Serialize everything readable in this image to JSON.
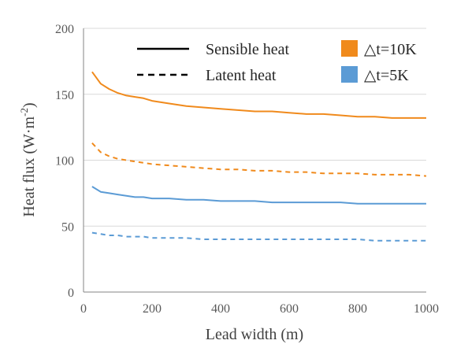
{
  "chart_data": {
    "type": "line",
    "xlabel": "Lead width (m)",
    "ylabel": "Heat flux (W·m",
    "ylabel_sup": "-2",
    "ylabel_close": ")",
    "xlim": [
      0,
      1000
    ],
    "ylim": [
      0,
      200
    ],
    "xticks": [
      0,
      200,
      400,
      600,
      800,
      1000
    ],
    "yticks": [
      0,
      50,
      100,
      150,
      200
    ],
    "grid": {
      "horizontal": true,
      "vertical": false
    },
    "legend": {
      "placement": "top-right",
      "styles": [
        {
          "label": "Sensible heat",
          "dash": "solid"
        },
        {
          "label": "Latent heat",
          "dash": "dashed"
        }
      ],
      "colors": [
        {
          "label": "△t=10K",
          "color": "#f08a1c"
        },
        {
          "label": "△t=5K",
          "color": "#5b9bd5"
        }
      ]
    },
    "series": [
      {
        "delta_t": "△t=10K",
        "heat": "Sensible heat",
        "color": "#f08a1c",
        "dash": "solid",
        "x": [
          25,
          50,
          75,
          100,
          125,
          150,
          175,
          200,
          250,
          300,
          350,
          400,
          450,
          500,
          550,
          600,
          650,
          700,
          750,
          800,
          850,
          900,
          950,
          1000
        ],
        "y": [
          167,
          158,
          154,
          151,
          149,
          148,
          147,
          145,
          143,
          141,
          140,
          139,
          138,
          137,
          137,
          136,
          135,
          135,
          134,
          133,
          133,
          132,
          132,
          132
        ]
      },
      {
        "delta_t": "△t=10K",
        "heat": "Latent heat",
        "color": "#f08a1c",
        "dash": "dashed",
        "x": [
          25,
          50,
          75,
          100,
          125,
          150,
          175,
          200,
          250,
          300,
          350,
          400,
          450,
          500,
          550,
          600,
          650,
          700,
          750,
          800,
          850,
          900,
          950,
          1000
        ],
        "y": [
          113,
          106,
          103,
          101,
          100,
          99,
          98,
          97,
          96,
          95,
          94,
          93,
          93,
          92,
          92,
          91,
          91,
          90,
          90,
          90,
          89,
          89,
          89,
          88
        ]
      },
      {
        "delta_t": "△t=5K",
        "heat": "Sensible heat",
        "color": "#5b9bd5",
        "dash": "solid",
        "x": [
          25,
          50,
          75,
          100,
          125,
          150,
          175,
          200,
          250,
          300,
          350,
          400,
          450,
          500,
          550,
          600,
          650,
          700,
          750,
          800,
          850,
          900,
          950,
          1000
        ],
        "y": [
          80,
          76,
          75,
          74,
          73,
          72,
          72,
          71,
          71,
          70,
          70,
          69,
          69,
          69,
          68,
          68,
          68,
          68,
          68,
          67,
          67,
          67,
          67,
          67
        ]
      },
      {
        "delta_t": "△t=5K",
        "heat": "Latent heat",
        "color": "#5b9bd5",
        "dash": "dashed",
        "x": [
          25,
          50,
          75,
          100,
          125,
          150,
          175,
          200,
          250,
          300,
          350,
          400,
          450,
          500,
          550,
          600,
          650,
          700,
          750,
          800,
          850,
          900,
          950,
          1000
        ],
        "y": [
          45,
          44,
          43,
          43,
          42,
          42,
          42,
          41,
          41,
          41,
          40,
          40,
          40,
          40,
          40,
          40,
          40,
          40,
          40,
          40,
          39,
          39,
          39,
          39
        ]
      }
    ]
  }
}
